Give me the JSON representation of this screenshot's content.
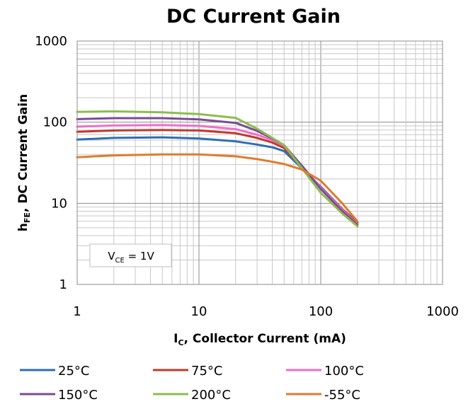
{
  "chart_data": {
    "type": "line",
    "title": "DC Current Gain",
    "xlabel": {
      "main": "I",
      "sub": "C",
      "rest": ", Collector Current (mA)"
    },
    "ylabel": {
      "main": "h",
      "sub": "FE",
      "rest": ", DC Current Gain"
    },
    "x_scale": "log",
    "y_scale": "log",
    "xlim": [
      1,
      1000
    ],
    "ylim": [
      1,
      1000
    ],
    "x_ticks": [
      "1",
      "10",
      "100",
      "1000"
    ],
    "y_ticks": [
      "1",
      "10",
      "100",
      "1000"
    ],
    "grid": true,
    "legend_position": "bottom",
    "annotation": {
      "main": "V",
      "sub": "CE",
      "rest": " = 1V"
    },
    "series": [
      {
        "name": "25°C",
        "color": "#2E6DB4",
        "x": [
          1,
          2,
          5,
          10,
          20,
          30,
          40,
          50,
          70,
          100,
          150,
          200
        ],
        "y": [
          61,
          64,
          65,
          63,
          58,
          53,
          49,
          44,
          27,
          16,
          8.5,
          5.8
        ]
      },
      {
        "name": "75°C",
        "color": "#C0392B",
        "x": [
          1,
          2,
          5,
          10,
          20,
          30,
          40,
          50,
          70,
          100,
          150,
          200
        ],
        "y": [
          76,
          79,
          80,
          79,
          73,
          64,
          56,
          48,
          28,
          15.5,
          8.5,
          5.6
        ]
      },
      {
        "name": "100°C",
        "color": "#F06EC8",
        "x": [
          1,
          2,
          5,
          10,
          20,
          30,
          40,
          50,
          70,
          100,
          150,
          200
        ],
        "y": [
          88,
          91,
          92,
          90,
          82,
          70,
          60,
          51,
          29,
          15.5,
          8.3,
          5.5
        ]
      },
      {
        "name": "150°C",
        "color": "#7B4B94",
        "x": [
          1,
          2,
          5,
          10,
          20,
          30,
          40,
          50,
          70,
          100,
          150,
          200
        ],
        "y": [
          109,
          112,
          112,
          108,
          98,
          78,
          63,
          52,
          29,
          15,
          8.0,
          5.4
        ]
      },
      {
        "name": "200°C",
        "color": "#8CBD4E",
        "x": [
          1,
          2,
          5,
          10,
          20,
          30,
          40,
          50,
          70,
          100,
          150,
          200
        ],
        "y": [
          134,
          136,
          132,
          126,
          113,
          83,
          64,
          52,
          27,
          13.5,
          7.5,
          5.2
        ]
      },
      {
        "name": "-55°C",
        "color": "#E07B2C",
        "x": [
          1,
          2,
          5,
          10,
          20,
          30,
          40,
          50,
          70,
          100,
          150,
          200
        ],
        "y": [
          37,
          39,
          40,
          40,
          38,
          35,
          32.5,
          30.5,
          26,
          19,
          10,
          6.0
        ]
      }
    ]
  }
}
